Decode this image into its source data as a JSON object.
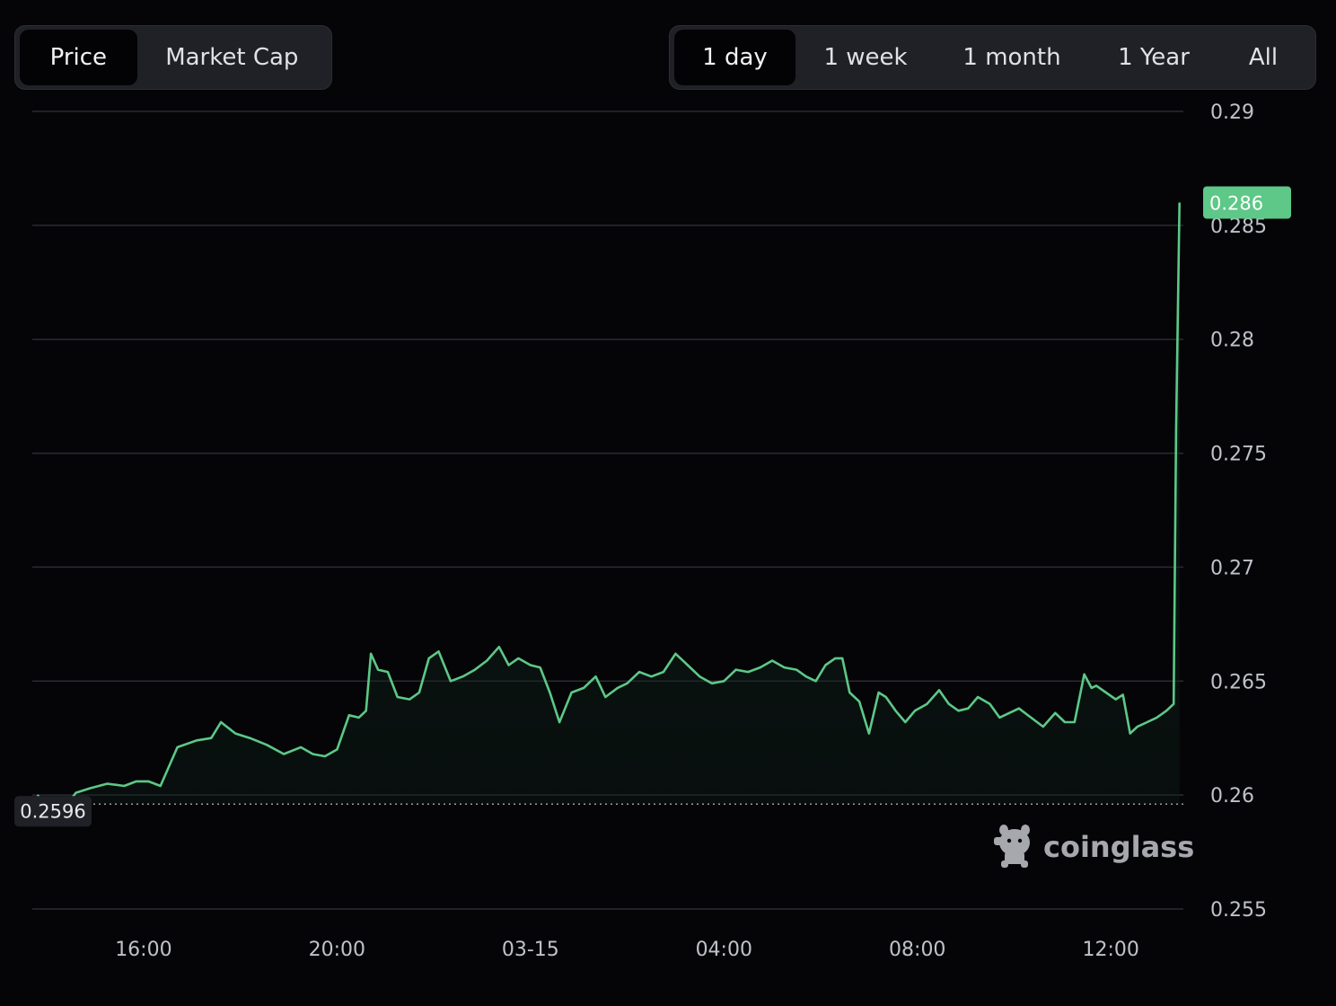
{
  "metric_tabs": [
    {
      "label": "Price",
      "active": true
    },
    {
      "label": "Market Cap",
      "active": false
    }
  ],
  "range_tabs": [
    {
      "label": "1 day",
      "active": true
    },
    {
      "label": "1 week",
      "active": false
    },
    {
      "label": "1 month",
      "active": false
    },
    {
      "label": "1 Year",
      "active": false
    },
    {
      "label": "All",
      "active": false
    }
  ],
  "colors": {
    "up": "#5dc887",
    "down": "#e0454f",
    "grid": "#2a2c31",
    "background": "#050508"
  },
  "watermark": {
    "text": "coinglass",
    "icon": "coinglass-mascot-icon"
  },
  "chart_data": {
    "type": "line",
    "title": "",
    "xlabel": "",
    "ylabel": "",
    "ylim": [
      0.255,
      0.29
    ],
    "y_ticks": [
      "0.29",
      "0.285",
      "0.28",
      "0.275",
      "0.27",
      "0.265",
      "0.26",
      "0.255"
    ],
    "x_ticks": [
      "16:00",
      "20:00",
      "03-15",
      "04:00",
      "08:00",
      "12:00"
    ],
    "x_tick_hours": [
      16,
      20,
      24,
      28,
      32,
      36
    ],
    "x_range_hours": [
      13.7,
      37.5
    ],
    "grid": true,
    "baseline": 0.2596,
    "baseline_label": "0.2596",
    "last_value": 0.286,
    "last_label": "0.286",
    "series": [
      {
        "x_hours": [
          13.8,
          14.1,
          14.35,
          14.6,
          14.9,
          15.25,
          15.6,
          15.85,
          16.1,
          16.35,
          16.7,
          17.1,
          17.4,
          17.6,
          17.9,
          18.2,
          18.55,
          18.9,
          19.25,
          19.5,
          19.75,
          20.0,
          20.25,
          20.45,
          20.6,
          20.7,
          20.85,
          21.05,
          21.25,
          21.5,
          21.7,
          21.9,
          22.1,
          22.35,
          22.6,
          22.85,
          23.1,
          23.35,
          23.55,
          23.75,
          24.0,
          24.2,
          24.4,
          24.6,
          24.85,
          25.1,
          25.35,
          25.55,
          25.8,
          26.0,
          26.25,
          26.5,
          26.75,
          27.0,
          27.25,
          27.5,
          27.75,
          28.0,
          28.25,
          28.5,
          28.75,
          29.0,
          29.25,
          29.5,
          29.7,
          29.9,
          30.1,
          30.3,
          30.45,
          30.6,
          30.8,
          31.0,
          31.2,
          31.35,
          31.55,
          31.75,
          31.95,
          32.2,
          32.45,
          32.65,
          32.85,
          33.05,
          33.25,
          33.5,
          33.7,
          33.9,
          34.1,
          34.35,
          34.6,
          34.85,
          35.05,
          35.25,
          35.45,
          35.6,
          35.7,
          35.9,
          36.1,
          36.25,
          36.4,
          36.55,
          36.75,
          36.95,
          37.15,
          37.3,
          37.35,
          37.42
        ],
        "values": [
          0.26,
          0.2594,
          0.2594,
          0.2601,
          0.2603,
          0.2605,
          0.2604,
          0.2606,
          0.2606,
          0.2604,
          0.2621,
          0.2624,
          0.2625,
          0.2632,
          0.2627,
          0.2625,
          0.2622,
          0.2618,
          0.2621,
          0.2618,
          0.2617,
          0.262,
          0.2635,
          0.2634,
          0.2637,
          0.2662,
          0.2655,
          0.2654,
          0.2643,
          0.2642,
          0.2645,
          0.266,
          0.2663,
          0.265,
          0.2652,
          0.2655,
          0.2659,
          0.2665,
          0.2657,
          0.266,
          0.2657,
          0.2656,
          0.2645,
          0.2632,
          0.2645,
          0.2647,
          0.2652,
          0.2643,
          0.2647,
          0.2649,
          0.2654,
          0.2652,
          0.2654,
          0.2662,
          0.2657,
          0.2652,
          0.2649,
          0.265,
          0.2655,
          0.2654,
          0.2656,
          0.2659,
          0.2656,
          0.2655,
          0.2652,
          0.265,
          0.2657,
          0.266,
          0.266,
          0.2645,
          0.2641,
          0.2627,
          0.2645,
          0.2643,
          0.2637,
          0.2632,
          0.2637,
          0.264,
          0.2646,
          0.264,
          0.2637,
          0.2638,
          0.2643,
          0.264,
          0.2634,
          0.2636,
          0.2638,
          0.2634,
          0.263,
          0.2636,
          0.2632,
          0.2632,
          0.2653,
          0.2647,
          0.2648,
          0.2645,
          0.2642,
          0.2644,
          0.2627,
          0.263,
          0.2632,
          0.2634,
          0.2637,
          0.264,
          0.276,
          0.286
        ]
      }
    ]
  }
}
